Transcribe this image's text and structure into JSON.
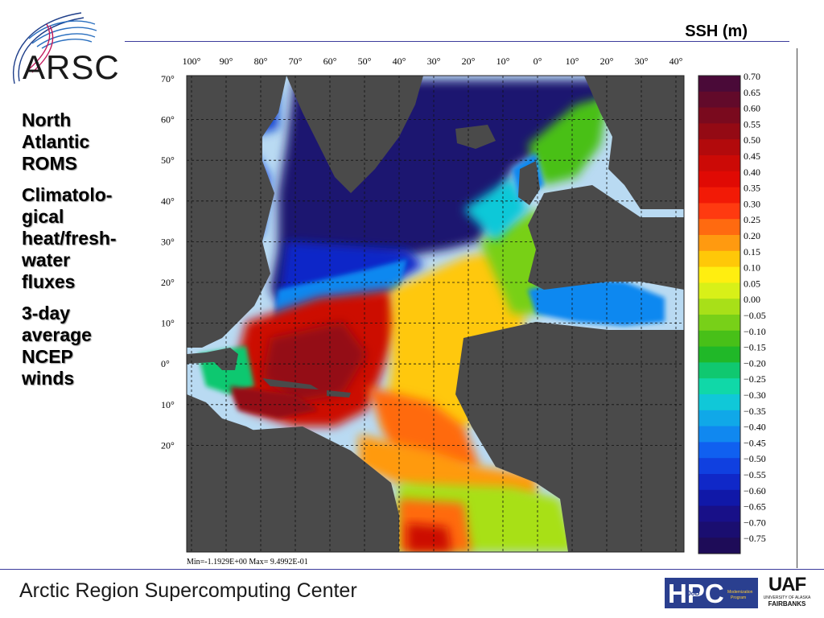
{
  "logo": {
    "text": "ARSC"
  },
  "header": {
    "slide_label": "SSH (m)"
  },
  "bullets": [
    "North\nAtlantic\nROMS",
    "Climatolo-\ngical\nheat/fresh-\nwater\nfluxes",
    "3-day\naverage\nNCEP\nwinds"
  ],
  "map": {
    "lon_labels": [
      "100°",
      "90°",
      "80°",
      "70°",
      "60°",
      "50°",
      "40°",
      "30°",
      "20°",
      "10°",
      "0°",
      "10°",
      "20°",
      "30°",
      "40°"
    ],
    "lat_labels": [
      "70°",
      "60°",
      "50°",
      "40°",
      "30°",
      "20°",
      "10°",
      "0°",
      "10°",
      "20°"
    ],
    "stats": "Min=-1.1929E+00  Max= 9.4992E-01",
    "colorbar_values": [
      "0.70",
      "0.65",
      "0.60",
      "0.55",
      "0.50",
      "0.45",
      "0.40",
      "0.35",
      "0.30",
      "0.25",
      "0.20",
      "0.15",
      "0.10",
      "0.05",
      "0.00",
      "−0.05",
      "−0.10",
      "−0.15",
      "−0.20",
      "−0.25",
      "−0.30",
      "−0.35",
      "−0.40",
      "−0.45",
      "−0.50",
      "−0.55",
      "−0.60",
      "−0.65",
      "−0.70",
      "−0.75"
    ],
    "colors": {
      "land": "#4a4a4a",
      "outside_domain": "#b9daf2",
      "colorbar": [
        "#4a0a38",
        "#620a2a",
        "#7a0a1e",
        "#940a14",
        "#b20a0c",
        "#cc0a06",
        "#e00a04",
        "#f21a06",
        "#ff3a10",
        "#ff6a10",
        "#ff9a10",
        "#ffc808",
        "#ffee10",
        "#d8f018",
        "#a8e018",
        "#78d018",
        "#48c018",
        "#20b828",
        "#10c870",
        "#10d8a8",
        "#10c8d8",
        "#10a8e8",
        "#1088f0",
        "#1060f0",
        "#1040e0",
        "#1028c8",
        "#1018a8",
        "#181088",
        "#1a0e70",
        "#1e0c58"
      ]
    }
  },
  "footer": {
    "title": "Arctic Region Supercomputing Center"
  },
  "sponsors": {
    "hpc_text": "HPC",
    "dod_text": "DoD",
    "hpc_sub": "Modernization\nProgram",
    "uaf_text": "UAF",
    "uaf_sub1": "UNIVERSITY OF ALASKA",
    "uaf_sub2": "FAIRBANKS"
  }
}
